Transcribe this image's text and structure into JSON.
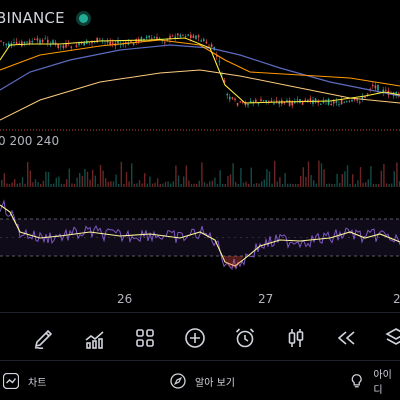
{
  "header": {
    "exchange": "BINANCE",
    "status_color": "#22ab94"
  },
  "volume_label": "0 200 240",
  "x_axis": {
    "labels": [
      "26",
      "27",
      "2"
    ]
  },
  "toolbar": {
    "items": [
      {
        "name": "draw-tool",
        "icon": "pen-icon"
      },
      {
        "name": "indicators",
        "icon": "indicators-icon"
      },
      {
        "name": "templates",
        "icon": "grid-icon"
      },
      {
        "name": "add",
        "icon": "plus-circle-icon"
      },
      {
        "name": "alert",
        "icon": "alarm-clock-icon"
      },
      {
        "name": "chart-type",
        "icon": "candles-icon"
      },
      {
        "name": "replay",
        "icon": "rewind-icon"
      },
      {
        "name": "layers",
        "icon": "layers-icon"
      }
    ]
  },
  "bottom_nav": {
    "chart": "차트",
    "explore": "알아 보기",
    "ideas": "아이디"
  },
  "colors": {
    "rsi": "#7e57c2",
    "rsi_ma": "#fff59d",
    "ma_fast": "#ffeb3b",
    "ma_mid": "#ff9800",
    "ma_slow": "#5c6bc0",
    "ma_long": "#ffcc80",
    "ma_red": "#ef5350",
    "up": "#26a69a",
    "down": "#ef5350"
  }
}
